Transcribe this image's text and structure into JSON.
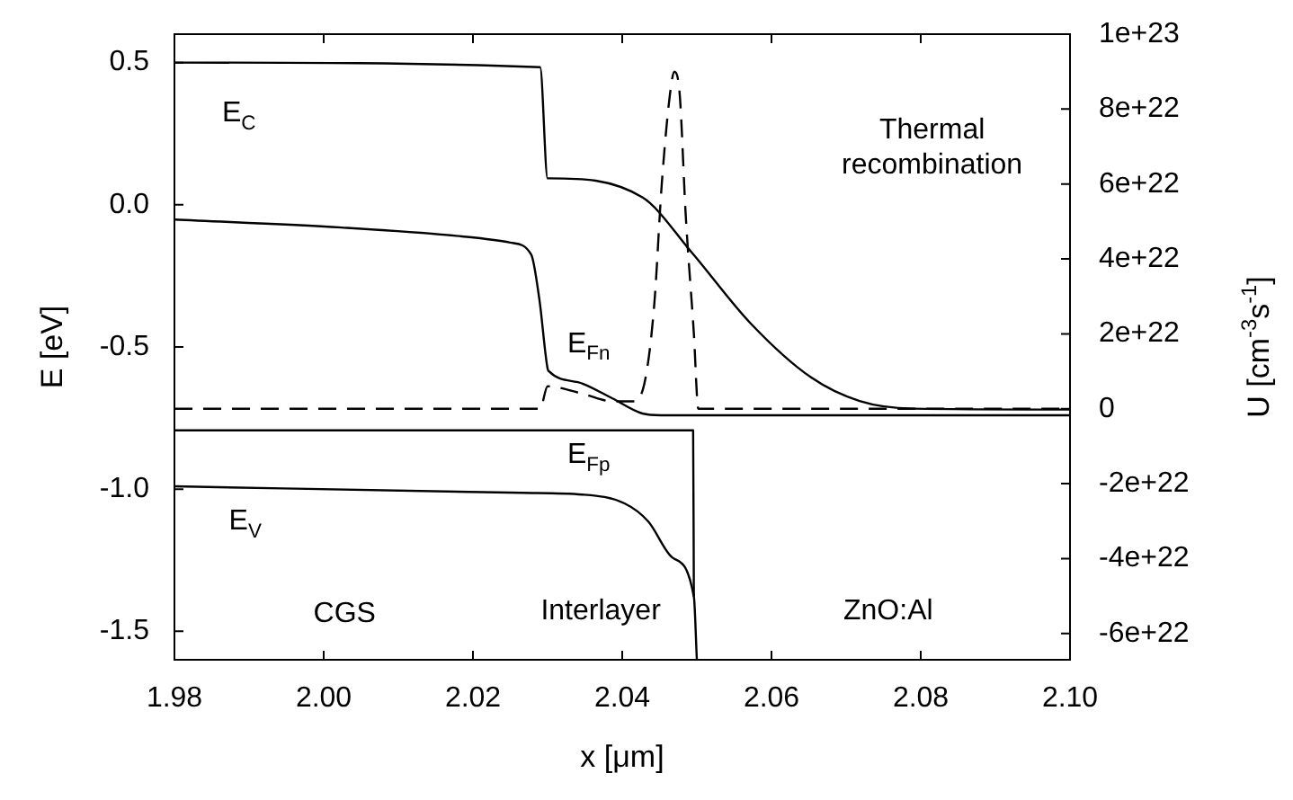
{
  "chart_data": {
    "type": "line",
    "xlabel": "x [μm]",
    "ylabel": "E [eV]",
    "y2label": "U [cm$^{-3}$s$^{-1}$]",
    "xlim": [
      1.98,
      2.1
    ],
    "xticks": [
      1.98,
      {
        "value": 2,
        "label": "2.00"
      },
      2.02,
      2.04,
      2.06,
      2.08,
      {
        "value": 2.1,
        "label": "2.10"
      }
    ],
    "ylim": [
      -1.6,
      0.6
    ],
    "yticks": [
      {
        "value": -1.5,
        "label": "-1.5"
      },
      {
        "value": -1,
        "label": "-1.0"
      },
      {
        "value": -0.5,
        "label": "-0.5"
      },
      {
        "value": 0,
        "label": "0.0"
      },
      0.5
    ],
    "y2lim": [
      -6.7e+22,
      1e+23
    ],
    "y2ticks": [
      {
        "value": -6e+22,
        "label": "-6e+22"
      },
      {
        "value": -4e+22,
        "label": "-4e+22"
      },
      {
        "value": -2e+22,
        "label": "-2e+22"
      },
      0,
      {
        "value": 2e+22,
        "label": "2e+22"
      },
      {
        "value": 4e+22,
        "label": "4e+22"
      },
      {
        "value": 6e+22,
        "label": "6e+22"
      },
      {
        "value": 8e+22,
        "label": "8e+22"
      },
      {
        "value": 1e+23,
        "label": "1e+23"
      }
    ],
    "marker": "none",
    "series": [
      {
        "type": "line",
        "color": "#000000",
        "line_style": "solid",
        "x": [
          1.98,
          2.029,
          2.03,
          2.0302,
          2.0427,
          2.0492,
          2.0572,
          2.0653,
          2.0718,
          2.079,
          2.1
        ],
        "values": [
          0.5,
          0.484,
          0.093,
          0.093,
          0.026,
          -0.164,
          -0.417,
          -0.607,
          -0.69,
          -0.717,
          -0.72
        ]
      },
      {
        "type": "line",
        "color": "#000000",
        "line_style": "solid",
        "x": [
          1.98,
          2.0024,
          2.0185,
          2.025,
          2.0278,
          2.0289,
          2.03,
          2.0302,
          2.0347,
          2.0387,
          2.0427,
          2.0452,
          2.1
        ],
        "values": [
          -0.052,
          -0.08,
          -0.111,
          -0.133,
          -0.175,
          -0.333,
          -0.576,
          -0.586,
          -0.629,
          -0.681,
          -0.734,
          -0.74,
          -0.74
        ]
      },
      {
        "type": "line",
        "color": "#000000",
        "line_style": "solid",
        "x": [
          1.98,
          2.0495,
          2.0496
        ],
        "values": [
          -0.793,
          -0.793,
          -1.378
        ]
      },
      {
        "type": "line",
        "color": "#000000",
        "line_style": "solid",
        "x": [
          1.98,
          2.0266,
          2.0347,
          2.0403,
          2.0435,
          2.0467,
          2.0496,
          2.05
        ],
        "values": [
          -0.99,
          -1.013,
          -1.019,
          -1.05,
          -1.114,
          -1.24,
          -1.378,
          -1.6
        ]
      },
      {
        "type": "line",
        "color": "#000000",
        "line_style": "dashed",
        "axis": "y2",
        "x": [
          1.98,
          2.029,
          2.03,
          2.0347,
          2.0387,
          2.0416,
          2.0431,
          2.0443,
          2.0453,
          2.0464,
          2.047,
          2.0477,
          2.0485,
          2.0496,
          2.0502,
          2.1
        ],
        "values": [
          0,
          0,
          6e+21,
          4e+21,
          2e+21,
          2e+21,
          8e+21,
          2.8e+22,
          6e+22,
          8.4e+22,
          9e+22,
          8.4e+22,
          5.2e+22,
          2e+22,
          0,
          0
        ]
      }
    ],
    "annotations": [
      "E$_{C}$",
      "E$_{Fn}$",
      "E$_{Fp}$",
      "E$_{V}$",
      "Thermal recombination",
      "CGS",
      "Interlayer",
      "ZnO:Al"
    ]
  }
}
